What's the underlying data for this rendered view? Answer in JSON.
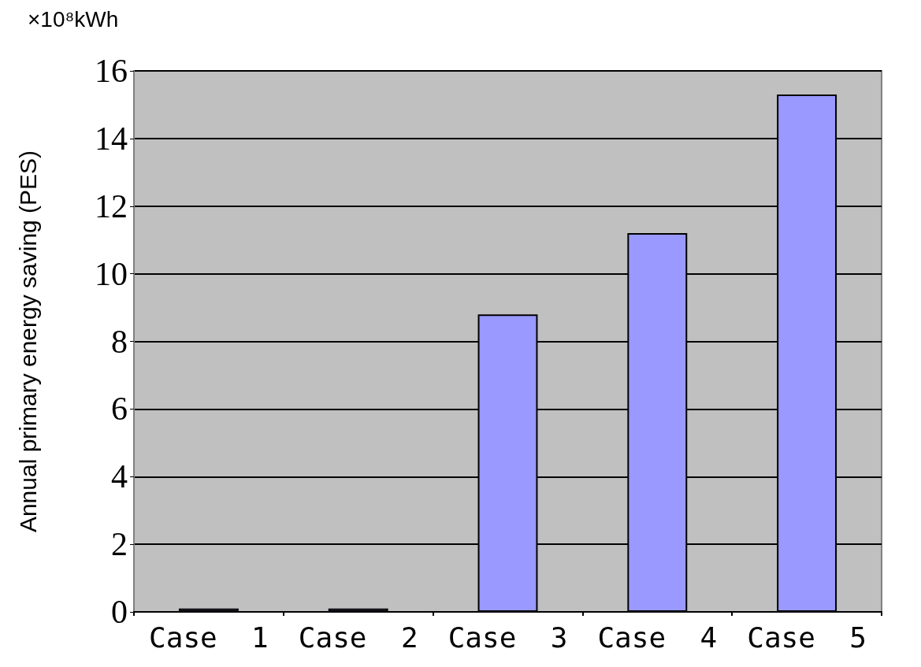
{
  "chart_data": {
    "type": "bar",
    "ylabel": "Annual primary energy saving (PES)",
    "annotations": [
      "×10⁸kWh"
    ],
    "categories": [
      "Case  1",
      "Case  2",
      "Case  3",
      "Case  4",
      "Case  5"
    ],
    "values": [
      0.1,
      0.1,
      8.8,
      11.2,
      15.3
    ],
    "color": "#9999ff",
    "ylim": [
      0,
      16
    ],
    "yticks": [
      0,
      2,
      4,
      6,
      8,
      10,
      12,
      14,
      16
    ],
    "grid": true
  }
}
